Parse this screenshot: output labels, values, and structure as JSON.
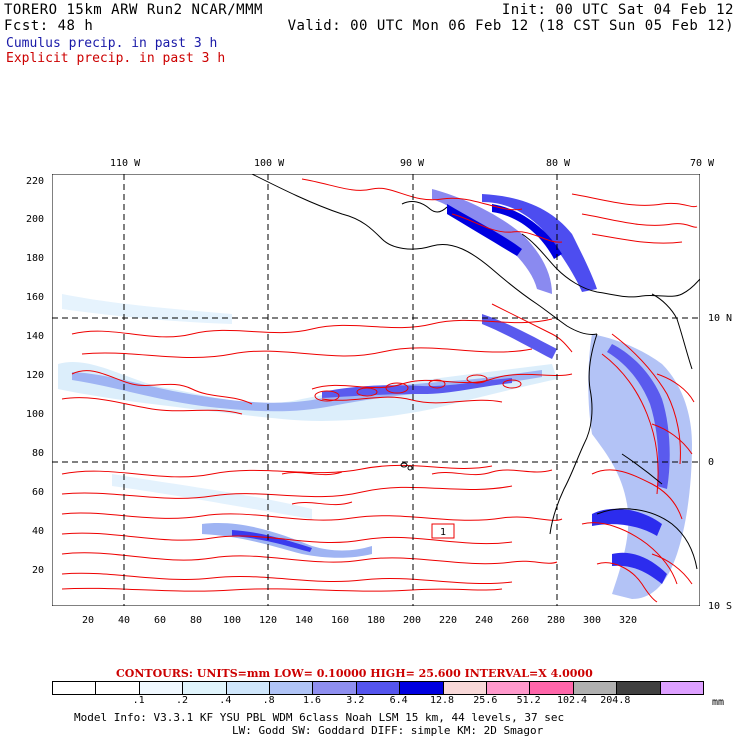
{
  "header": {
    "line1_left": "TORERO  15km ARW   Run2    NCAR/MMM",
    "line1_right": "Init: 00 UTC Sat 04 Feb 12",
    "line2_left": "Fcst:   48 h",
    "line2_right": "Valid: 00 UTC Mon 06 Feb 12 (18 CST Sun 05 Feb 12)"
  },
  "legend": {
    "cumulus": "Cumulus precip. in past 3 h",
    "explicit": "Explicit precip. in past 3 h"
  },
  "longitude_labels": [
    "110 W",
    "100 W",
    "90 W",
    "80 W",
    "70 W"
  ],
  "latitude_labels": [
    "10 N",
    "0",
    "10 S"
  ],
  "y_ticks": [
    "220",
    "200",
    "180",
    "160",
    "140",
    "120",
    "100",
    "80",
    "60",
    "40",
    "20"
  ],
  "x_ticks": [
    "20",
    "40",
    "60",
    "80",
    "100",
    "120",
    "140",
    "160",
    "180",
    "200",
    "220",
    "240",
    "260",
    "280",
    "300",
    "320"
  ],
  "contours_line": "CONTOURS:  UNITS=mm  LOW= 0.10000      HIGH=  25.600      INTERVAL=X  4.0000",
  "colorbar": {
    "colors": [
      "#ffffff",
      "#ffffff",
      "#f0f8ff",
      "#e0f4fc",
      "#cfe6fb",
      "#b0c4f6",
      "#8f8ff0",
      "#5555ee",
      "#0000e0",
      "#f8d8d8",
      "#ff99cc",
      "#ff66aa",
      "#b0b0b0",
      "#404040",
      "#dda0ff"
    ],
    "labels": [
      ".1",
      ".2",
      ".4",
      ".8",
      "1.6",
      "3.2",
      "6.4",
      "12.8",
      "25.6",
      "51.2",
      "102.4",
      "204.8"
    ],
    "unit": "mm"
  },
  "footer": {
    "line1": "Model Info: V3.3.1   KF    YSU PBL  WDM 6class  Noah LSM  15 km,   44 levels,   37 sec",
    "line2": "LW: Godd SW: Goddard DIFF: simple KM: 2D Smagor"
  },
  "map_label": "1"
}
